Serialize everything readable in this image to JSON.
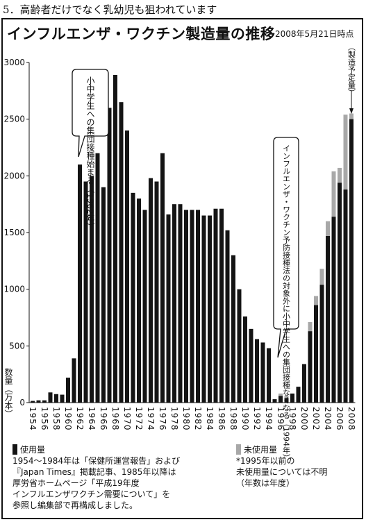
{
  "heading": "5．高齢者だけでなく乳幼児も狙われています",
  "chart_data": {
    "type": "bar",
    "title": "インフルエンザ・ワクチン製造量の推移",
    "asof": "2008年5月21日時点",
    "ylabel": "数量（万本）",
    "ylim": [
      0,
      3000
    ],
    "yticks": [
      0,
      500,
      1000,
      1500,
      2000,
      2500,
      3000
    ],
    "years": [
      1954,
      1955,
      1956,
      1957,
      1958,
      1959,
      1960,
      1961,
      1962,
      1963,
      1964,
      1965,
      1966,
      1967,
      1968,
      1969,
      1970,
      1971,
      1972,
      1973,
      1974,
      1975,
      1976,
      1977,
      1978,
      1979,
      1980,
      1981,
      1982,
      1983,
      1984,
      1985,
      1986,
      1987,
      1988,
      1989,
      1990,
      1991,
      1992,
      1993,
      1994,
      1995,
      1996,
      1997,
      1998,
      1999,
      2000,
      2001,
      2002,
      2003,
      2004,
      2005,
      2006,
      2007,
      2008
    ],
    "used": [
      15,
      20,
      20,
      90,
      75,
      70,
      220,
      390,
      2100,
      1950,
      2000,
      2200,
      1900,
      2600,
      2890,
      2650,
      2400,
      1850,
      1800,
      1700,
      1980,
      1950,
      2200,
      1660,
      1750,
      1750,
      1700,
      1700,
      1700,
      1650,
      1650,
      1710,
      1710,
      1520,
      1300,
      1000,
      760,
      650,
      560,
      530,
      480,
      30,
      60,
      40,
      80,
      140,
      340,
      630,
      860,
      1040,
      1470,
      1640,
      1940,
      1880,
      2260
    ],
    "unused": [
      0,
      0,
      0,
      0,
      0,
      0,
      0,
      0,
      0,
      0,
      0,
      0,
      0,
      0,
      0,
      0,
      0,
      0,
      0,
      0,
      0,
      0,
      0,
      0,
      0,
      0,
      0,
      0,
      0,
      0,
      0,
      0,
      0,
      0,
      0,
      0,
      0,
      0,
      0,
      0,
      0,
      0,
      20,
      20,
      0,
      0,
      0,
      80,
      80,
      140,
      130,
      400,
      130,
      660,
      290
    ],
    "planned": [
      0,
      0,
      0,
      0,
      0,
      0,
      0,
      0,
      0,
      0,
      0,
      0,
      0,
      0,
      0,
      0,
      0,
      0,
      0,
      0,
      0,
      0,
      0,
      0,
      0,
      0,
      0,
      0,
      0,
      0,
      0,
      0,
      0,
      0,
      0,
      0,
      0,
      0,
      0,
      0,
      0,
      0,
      0,
      0,
      0,
      0,
      0,
      0,
      0,
      0,
      0,
      0,
      0,
      0,
      2500
    ],
    "xtick_labels": [
      "1954",
      "1956",
      "1958",
      "1960",
      "1962",
      "1964",
      "1966",
      "1968",
      "1970",
      "1972",
      "1974",
      "1976",
      "1978",
      "1980",
      "1982",
      "1984",
      "1986",
      "1988",
      "1990",
      "1992",
      "1994",
      "1996",
      "1998",
      "2000",
      "2002",
      "2004",
      "2006",
      "2008"
    ],
    "callout1": "小中学生への集団接種始まる（1962年）",
    "callout2": "インフルエンザ・ワクチン予防接種法の対象外に小中学生への集団接種なくなる（1994年）",
    "planned_label": "（製造予定量）",
    "colors": {
      "used": "#141414",
      "unused": "#a8a8a8",
      "planned": "#141414"
    }
  },
  "legend": {
    "used_label": "使用量",
    "unused_label": "未使用量",
    "used_note": [
      "1954〜1984年は「保健所運営報告」および",
      "『Japan Times』掲載記事、1985年以降は",
      "厚労省ホームページ「平成19年度",
      "インフルエンザワクチン需要について」を",
      "参照し編集部で再構成しました。"
    ],
    "unused_note": [
      "*1995年以前の",
      "未使用量については不明",
      "（年数は年度）"
    ]
  }
}
